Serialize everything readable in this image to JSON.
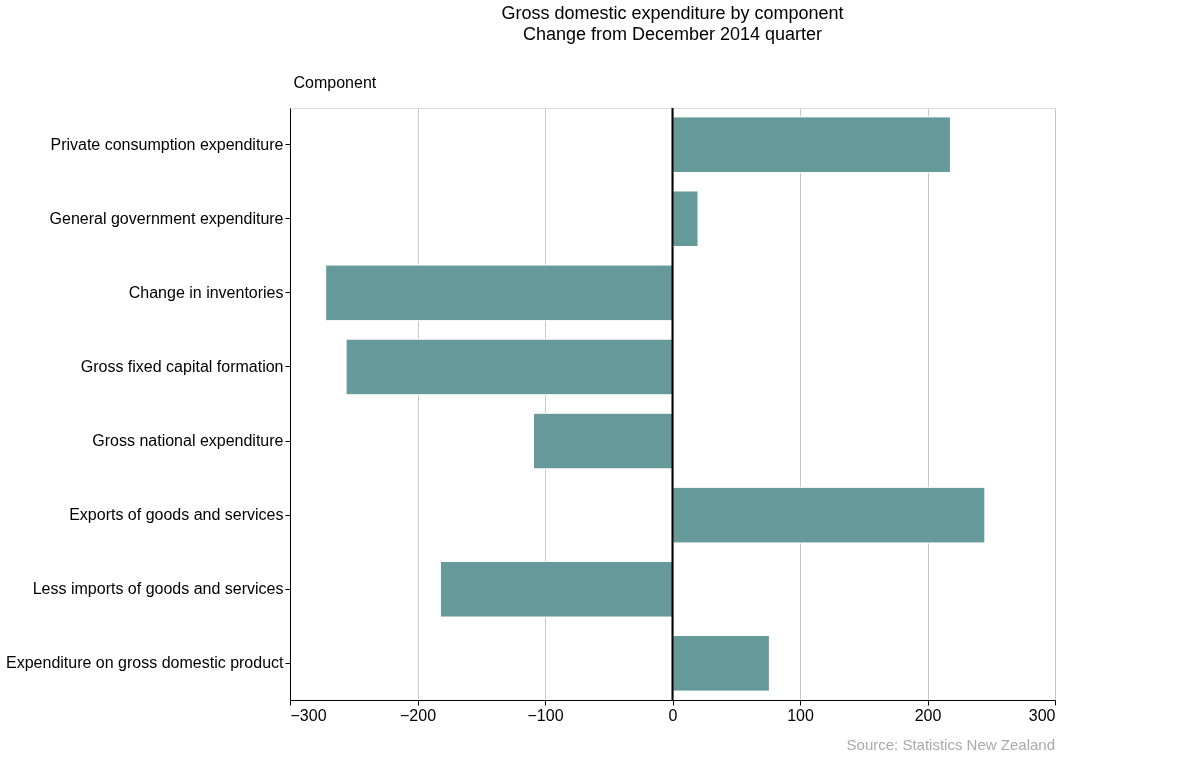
{
  "chart_data": {
    "type": "bar",
    "orientation": "horizontal",
    "title": "Gross domestic expenditure by component",
    "subtitle": "Change from December 2014 quarter",
    "ylabel": "Component",
    "categories": [
      "Private consumption expenditure",
      "General government expenditure",
      "Change in inventories",
      "Gross fixed capital formation",
      "Gross national expenditure",
      "Exports of goods and services",
      "Less imports of goods and services",
      "Expenditure on gross domestic product"
    ],
    "values": [
      218,
      20,
      -272,
      -256,
      -109,
      245,
      -182,
      76
    ],
    "color": "#669999",
    "xlim": [
      -300,
      300
    ],
    "xticks": [
      -300,
      -200,
      -100,
      0,
      100,
      200,
      300
    ],
    "grid": "x",
    "ref_lines": [
      {
        "axis": "x",
        "value": 0,
        "color": "#000000"
      }
    ],
    "annotations": [
      "Source: Statistics New Zealand"
    ]
  }
}
